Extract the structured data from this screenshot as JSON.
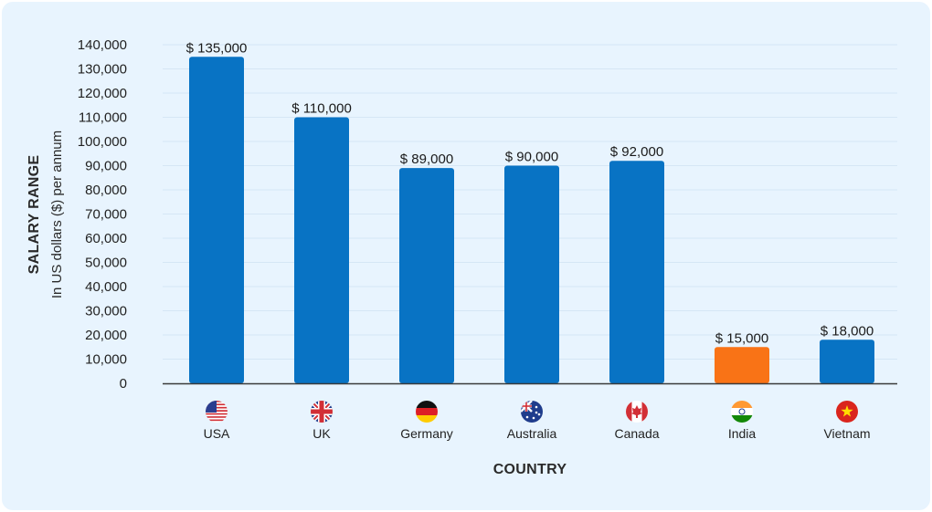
{
  "chart_data": {
    "type": "bar",
    "categories": [
      "USA",
      "UK",
      "Germany",
      "Australia",
      "Canada",
      "India",
      "Vietnam"
    ],
    "values": [
      135000,
      110000,
      89000,
      90000,
      92000,
      15000,
      18000
    ],
    "data_labels": [
      "$ 135,000",
      "$ 110,000",
      "$ 89,000",
      "$ 90,000",
      "$ 92,000",
      "$ 15,000",
      "$ 18,000"
    ],
    "flag_icons": [
      "usa-flag-icon",
      "uk-flag-icon",
      "germany-flag-icon",
      "australia-flag-icon",
      "canada-flag-icon",
      "india-flag-icon",
      "vietnam-flag-icon"
    ],
    "bar_colors": [
      "#0873c4",
      "#0873c4",
      "#0873c4",
      "#0873c4",
      "#0873c4",
      "#f97316",
      "#0873c4"
    ],
    "xlabel": "COUNTRY",
    "ylabel": "SALARY RANGE",
    "ylabel_sub": "In US dollars ($) per annum",
    "ylim": [
      0,
      140000
    ],
    "yticks": [
      "0",
      "10,000",
      "20,000",
      "30,000",
      "40,000",
      "50,000",
      "60,000",
      "70,000",
      "80,000",
      "90,000",
      "100,000",
      "110,000",
      "120,000",
      "130,000",
      "140,000"
    ],
    "grid": true,
    "legend": "none"
  }
}
